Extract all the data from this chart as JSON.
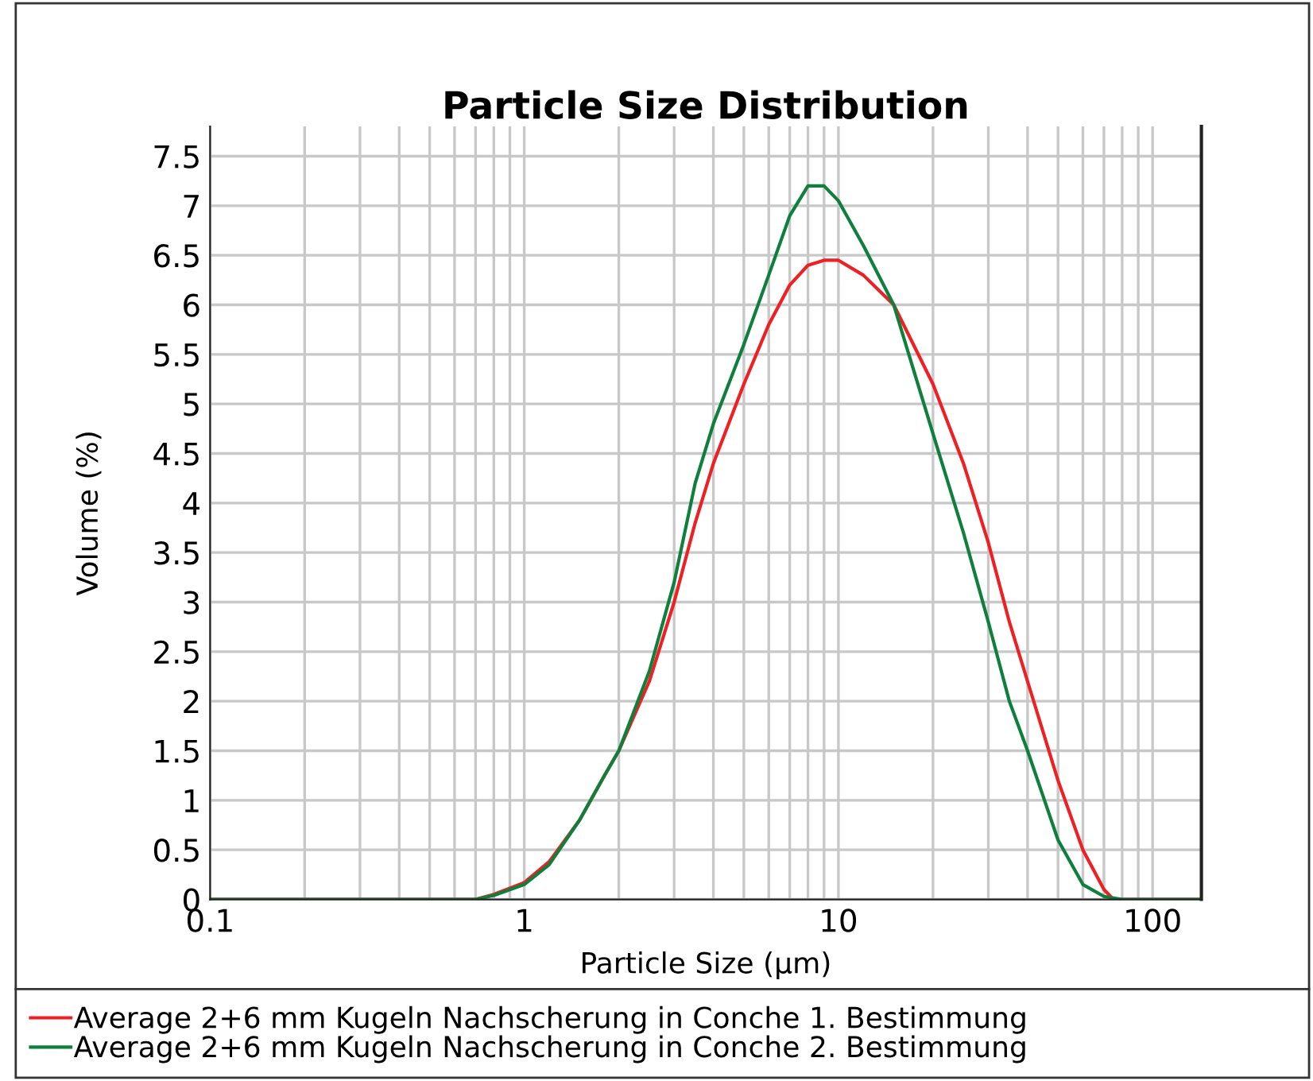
{
  "chart_data": {
    "type": "line",
    "title": "Particle Size Distribution",
    "xlabel": "Particle Size (μm)",
    "ylabel": "Volume (%)",
    "log": "x",
    "grid": true,
    "legend": "bottom",
    "line_style": "solid",
    "marker": "none",
    "xlim": [
      0.1,
      143
    ],
    "ylim": [
      0,
      7.8
    ],
    "xticks": [
      0.1,
      {
        "value": 0.2,
        "label": null
      },
      {
        "value": 0.3,
        "label": null
      },
      {
        "value": 0.4,
        "label": null
      },
      {
        "value": 0.5,
        "label": null
      },
      {
        "value": 0.6,
        "label": null
      },
      {
        "value": 0.7,
        "label": null
      },
      {
        "value": 0.8,
        "label": null
      },
      {
        "value": 0.9,
        "label": null
      },
      1,
      {
        "value": 2,
        "label": null
      },
      {
        "value": 3,
        "label": null
      },
      {
        "value": 4,
        "label": null
      },
      {
        "value": 5,
        "label": null
      },
      {
        "value": 6,
        "label": null
      },
      {
        "value": 7,
        "label": null
      },
      {
        "value": 8,
        "label": null
      },
      {
        "value": 9,
        "label": null
      },
      10,
      {
        "value": 20,
        "label": null
      },
      {
        "value": 30,
        "label": null
      },
      {
        "value": 40,
        "label": null
      },
      {
        "value": 50,
        "label": null
      },
      {
        "value": 60,
        "label": null
      },
      {
        "value": 70,
        "label": null
      },
      {
        "value": 80,
        "label": null
      },
      {
        "value": 90,
        "label": null
      },
      100
    ],
    "yticks": [
      0,
      0.5,
      1,
      1.5,
      2,
      2.5,
      3,
      3.5,
      4,
      4.5,
      5,
      5.5,
      6,
      6.5,
      7,
      7.5
    ],
    "series": [
      {
        "name": "Average 2+6 mm Kugeln Nachscherung in Conche 1. Bestimmung",
        "color": "#ee2024",
        "x": [
          0.1,
          0.7,
          0.8,
          1,
          1.2,
          1.5,
          1.8,
          2,
          2.5,
          3,
          3.5,
          4,
          5,
          6,
          7,
          8,
          9,
          10,
          12,
          15,
          20,
          25,
          30,
          35,
          40,
          50,
          60,
          70,
          75,
          143
        ],
        "values": [
          0,
          0,
          0.05,
          0.17,
          0.38,
          0.8,
          1.25,
          1.5,
          2.2,
          3.0,
          3.8,
          4.4,
          5.2,
          5.8,
          6.2,
          6.4,
          6.45,
          6.45,
          6.3,
          6.0,
          5.2,
          4.4,
          3.6,
          2.8,
          2.2,
          1.2,
          0.5,
          0.1,
          0,
          0
        ]
      },
      {
        "name": "Average 2+6 mm Kugeln Nachscherung in Conche 2. Bestimmung",
        "color": "#0f7f3c",
        "x": [
          0.1,
          0.7,
          0.8,
          1,
          1.2,
          1.5,
          1.8,
          2,
          2.5,
          3,
          3.5,
          4,
          5,
          6,
          7,
          8,
          9,
          10,
          12,
          15,
          20,
          25,
          30,
          35,
          40,
          50,
          60,
          70,
          80,
          143
        ],
        "values": [
          0,
          0,
          0.04,
          0.15,
          0.35,
          0.8,
          1.25,
          1.5,
          2.3,
          3.2,
          4.2,
          4.8,
          5.6,
          6.3,
          6.9,
          7.2,
          7.2,
          7.05,
          6.6,
          6.0,
          4.7,
          3.7,
          2.8,
          2.0,
          1.5,
          0.6,
          0.15,
          0.03,
          0,
          0
        ]
      }
    ]
  }
}
